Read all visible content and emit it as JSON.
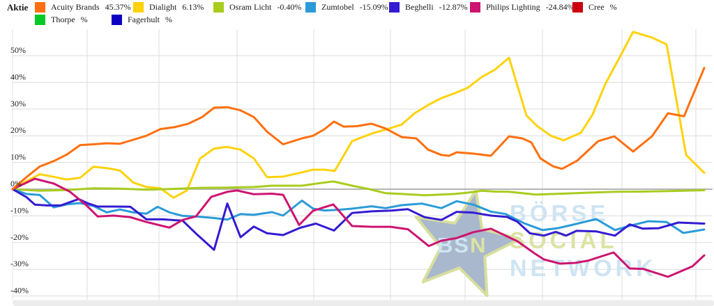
{
  "legend": {
    "title": "Aktie"
  },
  "watermark": {
    "badge_bs": "BS",
    "badge_n": "N",
    "line1": "BÖRSE",
    "line2": "SOCIAL",
    "line3": "NETWORK",
    "star_fill": "#a9b8cc",
    "star_stroke": "#d8df9e",
    "blue_text": "#cfe4f2",
    "khaki_text": "#dce3a4"
  },
  "chart_data": {
    "type": "line",
    "title": "",
    "xlabel": "",
    "ylabel": "",
    "unit": "percent change",
    "grid": true,
    "legend_position": "top",
    "ylim": [
      -40,
      60
    ],
    "y_ticks": [
      {
        "label": "50%",
        "value": 50
      },
      {
        "label": "40%",
        "value": 40
      },
      {
        "label": "30%",
        "value": 30
      },
      {
        "label": "20%",
        "value": 20
      },
      {
        "label": "10%",
        "value": 10
      },
      {
        "label": "0%",
        "value": 0
      },
      {
        "label": "-10%",
        "value": -10
      },
      {
        "label": "-20%",
        "value": -20
      },
      {
        "label": "-30%",
        "value": -30
      },
      {
        "label": "-40%",
        "value": -40
      }
    ],
    "x_tick_labels_visible": false,
    "points_format": "[x_position_px, percent_change]",
    "series": [
      {
        "name": "Acuity Brands",
        "value": "45.37%",
        "color": "#ff6f0e",
        "z": 6,
        "points": [
          [
            18,
            0
          ],
          [
            38,
            4.5
          ],
          [
            57,
            8.5
          ],
          [
            77,
            10.5
          ],
          [
            96,
            13
          ],
          [
            115,
            16.5
          ],
          [
            134,
            16.8
          ],
          [
            153,
            17.2
          ],
          [
            172,
            17
          ],
          [
            191,
            18.5
          ],
          [
            210,
            20
          ],
          [
            230,
            22.5
          ],
          [
            250,
            23.2
          ],
          [
            270,
            24.5
          ],
          [
            290,
            27
          ],
          [
            307,
            30.5
          ],
          [
            326,
            30.7
          ],
          [
            345,
            29.5
          ],
          [
            364,
            27
          ],
          [
            383,
            21.5
          ],
          [
            406,
            16.8
          ],
          [
            433,
            19
          ],
          [
            449,
            20
          ],
          [
            465,
            22.4
          ],
          [
            479,
            25.3
          ],
          [
            493,
            23.4
          ],
          [
            512,
            23.6
          ],
          [
            533,
            24.5
          ],
          [
            553,
            22.7
          ],
          [
            576,
            19.5
          ],
          [
            597,
            19
          ],
          [
            614,
            14.8
          ],
          [
            633,
            12.8
          ],
          [
            644,
            12.5
          ],
          [
            655,
            13.8
          ],
          [
            679,
            13.3
          ],
          [
            704,
            12.5
          ],
          [
            730,
            19.8
          ],
          [
            749,
            19
          ],
          [
            762,
            17.5
          ],
          [
            775,
            11.5
          ],
          [
            793,
            8.6
          ],
          [
            806,
            7.6
          ],
          [
            828,
            10.7
          ],
          [
            858,
            18
          ],
          [
            881,
            19.8
          ],
          [
            908,
            14.1
          ],
          [
            935,
            19.8
          ],
          [
            958,
            28.4
          ],
          [
            981,
            27.3
          ],
          [
            1010,
            45.4
          ]
        ]
      },
      {
        "name": "Dialight",
        "value": "6.13%",
        "color": "#ffd20a",
        "z": 1,
        "points": [
          [
            18,
            0
          ],
          [
            38,
            3
          ],
          [
            57,
            5.6
          ],
          [
            77,
            4.6
          ],
          [
            96,
            3.6
          ],
          [
            115,
            4.3
          ],
          [
            134,
            8.4
          ],
          [
            153,
            7.9
          ],
          [
            172,
            7
          ],
          [
            191,
            2.5
          ],
          [
            210,
            0.8
          ],
          [
            230,
            0.3
          ],
          [
            249,
            -3.2
          ],
          [
            268,
            -0.5
          ],
          [
            287,
            11.5
          ],
          [
            307,
            15.2
          ],
          [
            326,
            15.8
          ],
          [
            345,
            14.8
          ],
          [
            364,
            11.5
          ],
          [
            383,
            4.5
          ],
          [
            406,
            4.7
          ],
          [
            433,
            6.3
          ],
          [
            449,
            7.3
          ],
          [
            465,
            7.3
          ],
          [
            480,
            6.8
          ],
          [
            505,
            18
          ],
          [
            533,
            20.8
          ],
          [
            556,
            22.5
          ],
          [
            576,
            24.2
          ],
          [
            595,
            28.5
          ],
          [
            614,
            31.5
          ],
          [
            633,
            34.1
          ],
          [
            652,
            35.9
          ],
          [
            671,
            38
          ],
          [
            691,
            42
          ],
          [
            710,
            44.8
          ],
          [
            730,
            49.2
          ],
          [
            755,
            27.6
          ],
          [
            770,
            23.7
          ],
          [
            790,
            20
          ],
          [
            808,
            18.3
          ],
          [
            833,
            21.1
          ],
          [
            850,
            28
          ],
          [
            868,
            39.3
          ],
          [
            890,
            50
          ],
          [
            908,
            58.9
          ],
          [
            935,
            56.8
          ],
          [
            956,
            54.2
          ],
          [
            984,
            12.8
          ],
          [
            1010,
            6.1
          ]
        ]
      },
      {
        "name": "Osram Licht",
        "value": "-0.40%",
        "color": "#a9cc1e",
        "z": 2,
        "points": [
          [
            18,
            0
          ],
          [
            57,
            -0.6
          ],
          [
            96,
            -0.3
          ],
          [
            134,
            0.3
          ],
          [
            172,
            0.2
          ],
          [
            210,
            -0.2
          ],
          [
            249,
            0.1
          ],
          [
            287,
            0.5
          ],
          [
            326,
            0.6
          ],
          [
            364,
            0.8
          ],
          [
            390,
            1.3
          ],
          [
            433,
            1.3
          ],
          [
            460,
            2.3
          ],
          [
            478,
            2.9
          ],
          [
            505,
            1.3
          ],
          [
            528,
            0.1
          ],
          [
            553,
            -1.5
          ],
          [
            576,
            -1.8
          ],
          [
            609,
            -2.3
          ],
          [
            633,
            -2.0
          ],
          [
            652,
            -1.8
          ],
          [
            671,
            -1.3
          ],
          [
            691,
            -0.6
          ],
          [
            710,
            -0.9
          ],
          [
            730,
            -1.0
          ],
          [
            768,
            -2.0
          ],
          [
            806,
            -1.7
          ],
          [
            845,
            -1.3
          ],
          [
            883,
            -1.0
          ],
          [
            921,
            -0.9
          ],
          [
            959,
            -0.7
          ],
          [
            1010,
            -0.4
          ]
        ]
      },
      {
        "name": "Zumtobel",
        "value": "-15.09%",
        "color": "#2a9bd8",
        "z": 3,
        "points": [
          [
            18,
            0
          ],
          [
            38,
            -1.8
          ],
          [
            57,
            -2.2
          ],
          [
            77,
            -6.8
          ],
          [
            96,
            -5.7
          ],
          [
            115,
            -5.2
          ],
          [
            134,
            -6.3
          ],
          [
            153,
            -8.7
          ],
          [
            172,
            -7.6
          ],
          [
            191,
            -8.7
          ],
          [
            210,
            -9.2
          ],
          [
            226,
            -6.6
          ],
          [
            243,
            -8.7
          ],
          [
            262,
            -10
          ],
          [
            281,
            -10.2
          ],
          [
            307,
            -10.8
          ],
          [
            326,
            -11.4
          ],
          [
            345,
            -9.3
          ],
          [
            364,
            -9.6
          ],
          [
            390,
            -8.6
          ],
          [
            406,
            -9.9
          ],
          [
            433,
            -4.3
          ],
          [
            449,
            -7.3
          ],
          [
            465,
            -8.0
          ],
          [
            486,
            -7.7
          ],
          [
            505,
            -7.3
          ],
          [
            533,
            -6.4
          ],
          [
            553,
            -7.1
          ],
          [
            576,
            -6.0
          ],
          [
            605,
            -5.4
          ],
          [
            633,
            -7.1
          ],
          [
            655,
            -4.5
          ],
          [
            679,
            -5.8
          ],
          [
            704,
            -8.4
          ],
          [
            725,
            -9.3
          ],
          [
            752,
            -12.8
          ],
          [
            778,
            -15.3
          ],
          [
            800,
            -14.6
          ],
          [
            820,
            -13.4
          ],
          [
            855,
            -11.2
          ],
          [
            882,
            -15.3
          ],
          [
            902,
            -13.8
          ],
          [
            930,
            -12.0
          ],
          [
            956,
            -12.3
          ],
          [
            980,
            -16.4
          ],
          [
            1010,
            -15.1
          ]
        ]
      },
      {
        "name": "Beghelli",
        "value": "-12.87%",
        "color": "#341bd2",
        "z": 4,
        "points": [
          [
            18,
            0
          ],
          [
            38,
            -3
          ],
          [
            50,
            -5.8
          ],
          [
            67,
            -6.1
          ],
          [
            87,
            -6.1
          ],
          [
            113,
            -3.7
          ],
          [
            125,
            -5.2
          ],
          [
            140,
            -6.5
          ],
          [
            163,
            -6.5
          ],
          [
            187,
            -6.6
          ],
          [
            210,
            -11.3
          ],
          [
            233,
            -11.3
          ],
          [
            262,
            -11.8
          ],
          [
            281,
            -16.6
          ],
          [
            307,
            -22.7
          ],
          [
            326,
            -5.4
          ],
          [
            345,
            -18
          ],
          [
            364,
            -14
          ],
          [
            383,
            -16.5
          ],
          [
            406,
            -17.2
          ],
          [
            430,
            -14.5
          ],
          [
            453,
            -12.9
          ],
          [
            479,
            -15.5
          ],
          [
            505,
            -8.9
          ],
          [
            533,
            -8.3
          ],
          [
            562,
            -8.0
          ],
          [
            585,
            -7.5
          ],
          [
            609,
            -10.5
          ],
          [
            633,
            -11.5
          ],
          [
            655,
            -8.5
          ],
          [
            679,
            -8.8
          ],
          [
            704,
            -9.9
          ],
          [
            727,
            -10.4
          ],
          [
            742,
            -12.2
          ],
          [
            760,
            -16.5
          ],
          [
            780,
            -17.4
          ],
          [
            797,
            -16.0
          ],
          [
            812,
            -17.4
          ],
          [
            827,
            -15.6
          ],
          [
            855,
            -15.8
          ],
          [
            882,
            -17.4
          ],
          [
            903,
            -13.2
          ],
          [
            922,
            -14.8
          ],
          [
            945,
            -14.6
          ],
          [
            973,
            -12.5
          ],
          [
            1010,
            -12.9
          ]
        ]
      },
      {
        "name": "Philips Lighting",
        "value": "-24.84%",
        "color": "#cd1470",
        "z": 5,
        "points": [
          [
            18,
            0
          ],
          [
            50,
            3.9
          ],
          [
            77,
            2.1
          ],
          [
            100,
            -0.9
          ],
          [
            123,
            -5.8
          ],
          [
            140,
            -10.2
          ],
          [
            163,
            -9.9
          ],
          [
            187,
            -10.5
          ],
          [
            210,
            -12.3
          ],
          [
            243,
            -14.4
          ],
          [
            262,
            -11.5
          ],
          [
            281,
            -10.2
          ],
          [
            303,
            -2.9
          ],
          [
            326,
            -1.0
          ],
          [
            340,
            -0.5
          ],
          [
            364,
            -1.9
          ],
          [
            390,
            -1.7
          ],
          [
            406,
            -2.1
          ],
          [
            429,
            -13.4
          ],
          [
            449,
            -8.1
          ],
          [
            478,
            -5.7
          ],
          [
            505,
            -13.8
          ],
          [
            533,
            -14.1
          ],
          [
            560,
            -14.1
          ],
          [
            585,
            -15.0
          ],
          [
            615,
            -21.3
          ],
          [
            633,
            -19.3
          ],
          [
            655,
            -18.3
          ],
          [
            679,
            -16.1
          ],
          [
            704,
            -14.8
          ],
          [
            725,
            -17.4
          ],
          [
            742,
            -19.5
          ],
          [
            768,
            -24.3
          ],
          [
            780,
            -26.3
          ],
          [
            803,
            -27.9
          ],
          [
            825,
            -27.6
          ],
          [
            843,
            -26.8
          ],
          [
            880,
            -23.7
          ],
          [
            903,
            -29.7
          ],
          [
            923,
            -29.9
          ],
          [
            958,
            -32.8
          ],
          [
            993,
            -28.9
          ],
          [
            1010,
            -24.8
          ]
        ]
      },
      {
        "name": "Cree",
        "value": "%",
        "color": "#cc0011",
        "z": 0,
        "points": []
      },
      {
        "name": "Thorpe",
        "value": "%",
        "color": "#06c927",
        "z": 0,
        "points": []
      },
      {
        "name": "Fagerhult",
        "value": "%",
        "color": "#0c00c2",
        "z": 0,
        "points": []
      }
    ]
  }
}
